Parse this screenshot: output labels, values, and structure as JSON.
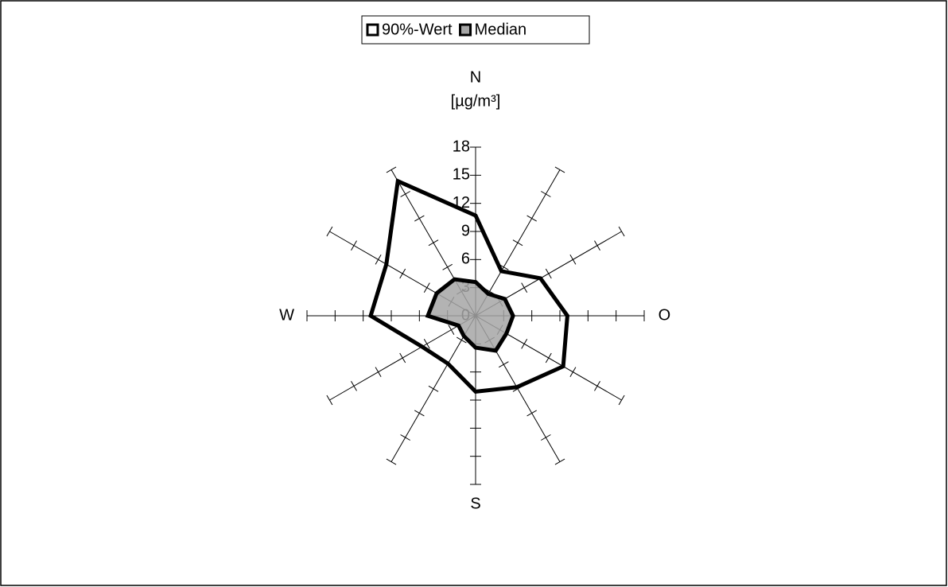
{
  "chart_data": {
    "type": "radar",
    "y_label": "[µg/m³]",
    "categories": [
      "N",
      null,
      null,
      "O",
      null,
      null,
      "S",
      null,
      null,
      "W",
      null,
      null
    ],
    "ylim": [
      0,
      18
    ],
    "yticks": [
      0,
      3,
      6,
      9,
      12,
      15,
      18
    ],
    "legend": "top",
    "series": [
      {
        "name": "90%-Wert",
        "color": "#000000",
        "fill": "#ffffff",
        "values": [
          10.7,
          5.5,
          8.0,
          9.8,
          10.8,
          8.8,
          8.1,
          5.9,
          6.6,
          11.2,
          11.0,
          16.6
        ]
      },
      {
        "name": "Median",
        "color": "#000000",
        "fill": "#a6a6a6",
        "values": [
          3.6,
          2.7,
          3.6,
          4.0,
          3.8,
          4.3,
          3.4,
          2.5,
          2.1,
          5.1,
          4.8,
          4.5
        ]
      }
    ]
  }
}
